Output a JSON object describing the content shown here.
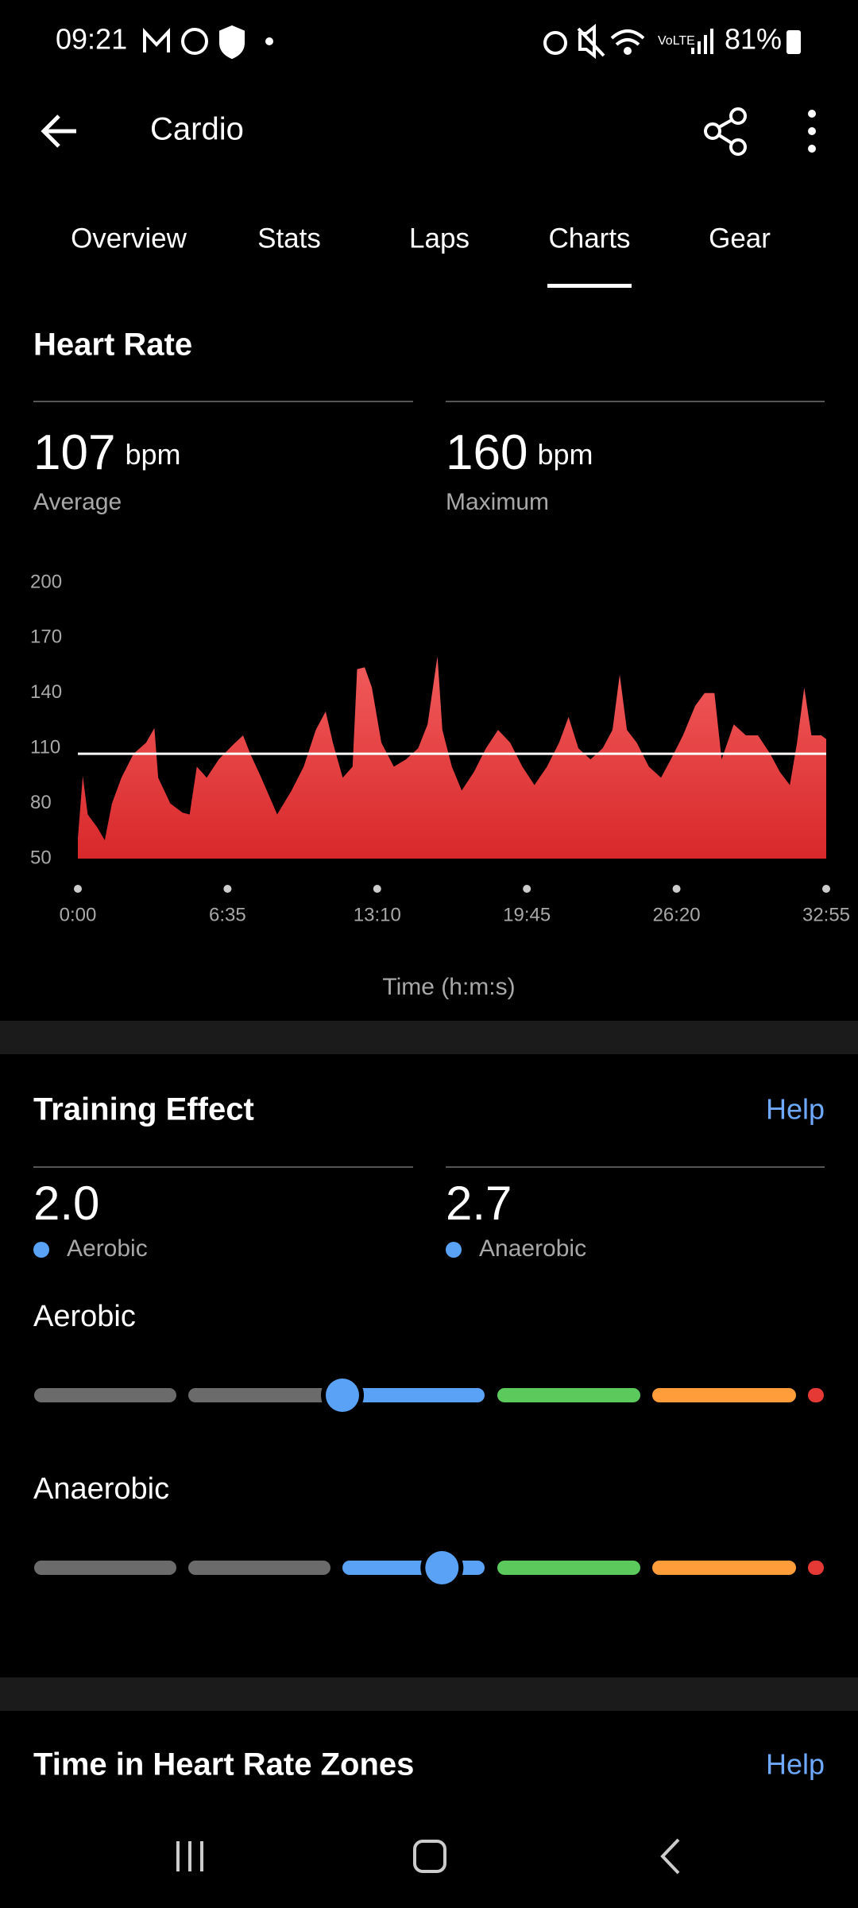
{
  "status_bar": {
    "time": "09:21",
    "battery": "81%"
  },
  "header": {
    "title": "Cardio"
  },
  "tabs": [
    "Overview",
    "Stats",
    "Laps",
    "Charts",
    "Gear"
  ],
  "active_tab": 3,
  "heart_rate": {
    "title": "Heart Rate",
    "average": {
      "value": 107,
      "unit": "bpm",
      "label": "Average"
    },
    "maximum": {
      "value": 160,
      "unit": "bpm",
      "label": "Maximum"
    },
    "chart": {
      "type": "area",
      "color_top": "#f25c5c",
      "color_bottom": "#d8282b",
      "x": [
        0,
        13,
        26,
        51,
        71,
        90,
        115,
        147,
        180,
        202,
        212,
        244,
        276,
        295,
        314,
        340,
        372,
        410,
        436,
        455,
        484,
        526,
        564,
        596,
        628,
        654,
        673,
        699,
        725,
        737,
        757,
        776,
        801,
        834,
        866,
        898,
        923,
        949,
        962,
        987,
        1013,
        1045,
        1077,
        1109,
        1141,
        1173,
        1205,
        1238,
        1270,
        1295,
        1321,
        1353,
        1385,
        1411,
        1430,
        1449,
        1475,
        1507,
        1539,
        1565,
        1597,
        1629,
        1654,
        1680,
        1699,
        1731,
        1763,
        1795,
        1827,
        1853,
        1879,
        1898,
        1917,
        1936,
        1962,
        1975
      ],
      "values": [
        61,
        95,
        74,
        67,
        60,
        80,
        94,
        107,
        113,
        121,
        94,
        80,
        75,
        74,
        100,
        94,
        104,
        112,
        117,
        107,
        94,
        74,
        87,
        100,
        120,
        130,
        113,
        94,
        100,
        153,
        154,
        143,
        113,
        100,
        104,
        110,
        123,
        160,
        120,
        100,
        87,
        97,
        110,
        120,
        113,
        100,
        90,
        100,
        113,
        127,
        110,
        104,
        110,
        120,
        150,
        120,
        113,
        100,
        94,
        104,
        117,
        133,
        140,
        140,
        104,
        123,
        117,
        117,
        107,
        97,
        90,
        113,
        143,
        117,
        117,
        115
      ],
      "xlim": [
        0,
        1975
      ],
      "ylim": [
        50,
        200
      ],
      "yticks": [
        50,
        80,
        110,
        140,
        170,
        200
      ],
      "xticks": [
        {
          "value": 0,
          "label": "0:00"
        },
        {
          "value": 395,
          "label": "6:35"
        },
        {
          "value": 790,
          "label": "13:10"
        },
        {
          "value": 1185,
          "label": "19:45"
        },
        {
          "value": 1580,
          "label": "26:20"
        },
        {
          "value": 1975,
          "label": "32:55"
        }
      ],
      "xlabel": "Time (h:m:s)"
    }
  },
  "training_effect": {
    "title": "Training Effect",
    "help": "Help",
    "aerobic": {
      "value": 2.0,
      "display": "2.0",
      "label": "Aerobic"
    },
    "anaerobic": {
      "value": 2.7,
      "display": "2.7",
      "label": "Anaerobic"
    }
  },
  "zones": {
    "title": "Time in Heart Rate Zones",
    "help": "Help"
  }
}
